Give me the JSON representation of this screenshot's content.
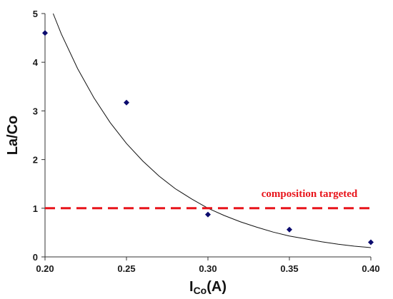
{
  "chart_data": {
    "type": "scatter",
    "xlabel_main": "I",
    "xlabel_sub": "Co",
    "xlabel_suffix": "(A)",
    "ylabel": "La/Co",
    "xlim": [
      0.2,
      0.4
    ],
    "ylim": [
      0,
      5
    ],
    "x_ticks": [
      "0.20",
      "0.25",
      "0.30",
      "0.35",
      "0.40"
    ],
    "y_ticks": [
      "0",
      "1",
      "2",
      "3",
      "4",
      "5"
    ],
    "grid": false,
    "series": [
      {
        "type": "scatter",
        "marker": "diamond",
        "color": "#0b0b6e",
        "x": [
          0.2,
          0.25,
          0.3,
          0.35,
          0.4
        ],
        "y": [
          4.6,
          3.17,
          0.87,
          0.56,
          0.3
        ]
      }
    ],
    "fit_curve": {
      "type": "exponential",
      "color": "#111111",
      "x": [
        0.205,
        0.21,
        0.22,
        0.23,
        0.24,
        0.25,
        0.26,
        0.27,
        0.28,
        0.29,
        0.3,
        0.31,
        0.32,
        0.33,
        0.34,
        0.35,
        0.36,
        0.37,
        0.38,
        0.39,
        0.4
      ],
      "y": [
        5.0,
        4.58,
        3.87,
        3.27,
        2.76,
        2.33,
        1.97,
        1.66,
        1.4,
        1.19,
        1.0,
        0.85,
        0.72,
        0.61,
        0.51,
        0.43,
        0.37,
        0.31,
        0.26,
        0.22,
        0.19
      ]
    },
    "reference_line": {
      "y": 1.0,
      "style": "dashed",
      "color": "#e8141b",
      "label": "composition targeted"
    }
  }
}
